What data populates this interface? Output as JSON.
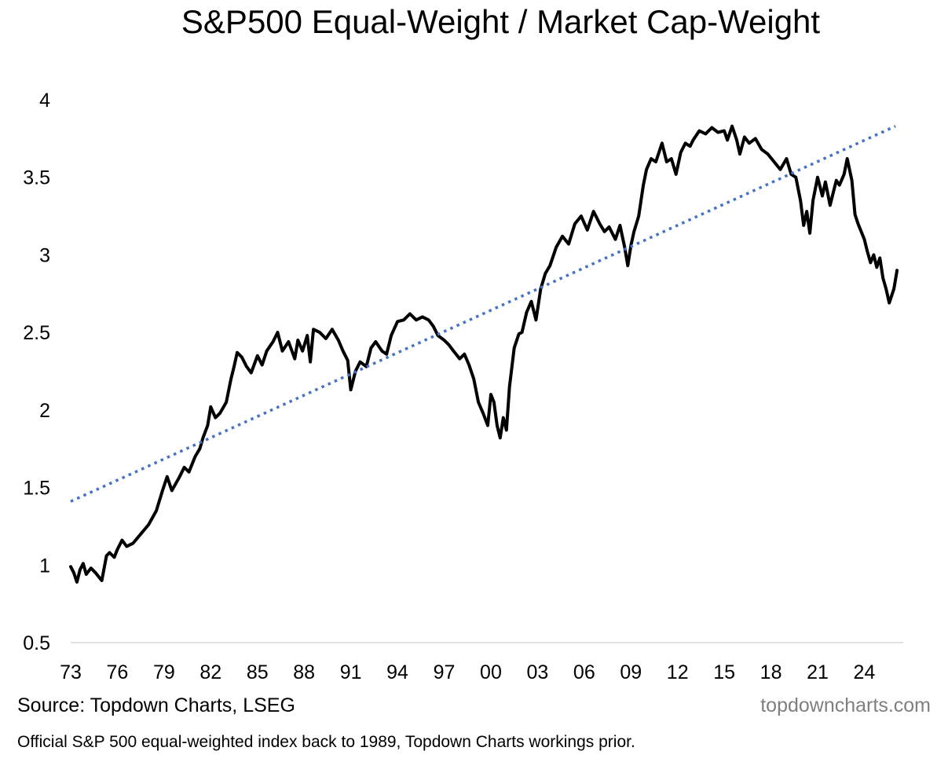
{
  "chart_data": {
    "type": "line",
    "title": "S&P500 Equal-Weight / Market Cap-Weight",
    "xlabel": "",
    "ylabel": "",
    "ylim": [
      0.5,
      4
    ],
    "xlim": [
      1973,
      2026.5
    ],
    "y_ticks": [
      0.5,
      1,
      1.5,
      2,
      2.5,
      3,
      3.5,
      4
    ],
    "y_tick_labels": [
      "0.5",
      "1",
      "1.5",
      "2",
      "2.5",
      "3",
      "3.5",
      "4"
    ],
    "x_ticks": [
      1973,
      1976,
      1979,
      1982,
      1985,
      1988,
      1991,
      1994,
      1997,
      2000,
      2003,
      2006,
      2009,
      2012,
      2015,
      2018,
      2021,
      2024
    ],
    "x_tick_labels": [
      "73",
      "76",
      "79",
      "82",
      "85",
      "88",
      "91",
      "94",
      "97",
      "00",
      "03",
      "06",
      "09",
      "12",
      "15",
      "18",
      "21",
      "24"
    ],
    "grid": false,
    "legend": "none",
    "series": [
      {
        "style": "solid",
        "color": "#000000",
        "x": [
          1973.0,
          1973.2,
          1973.4,
          1973.6,
          1973.8,
          1974.0,
          1974.3,
          1974.6,
          1975.0,
          1975.3,
          1975.5,
          1975.8,
          1976.0,
          1976.3,
          1976.6,
          1977.0,
          1977.5,
          1978.0,
          1978.5,
          1978.9,
          1979.2,
          1979.5,
          1980.0,
          1980.3,
          1980.6,
          1981.0,
          1981.3,
          1981.5,
          1981.8,
          1982.0,
          1982.3,
          1982.6,
          1983.0,
          1983.3,
          1983.5,
          1983.7,
          1984.0,
          1984.3,
          1984.6,
          1985.0,
          1985.3,
          1985.6,
          1986.0,
          1986.3,
          1986.6,
          1987.0,
          1987.4,
          1987.6,
          1987.9,
          1988.2,
          1988.4,
          1988.6,
          1989.0,
          1989.4,
          1989.8,
          1990.2,
          1990.5,
          1990.8,
          1991.0,
          1991.3,
          1991.6,
          1992.0,
          1992.3,
          1992.6,
          1993.0,
          1993.3,
          1993.6,
          1994.0,
          1994.4,
          1994.8,
          1995.2,
          1995.6,
          1996.0,
          1996.3,
          1996.6,
          1997.0,
          1997.3,
          1997.6,
          1998.0,
          1998.3,
          1998.6,
          1998.9,
          1999.2,
          1999.5,
          1999.8,
          2000.0,
          2000.2,
          2000.4,
          2000.6,
          2000.8,
          2001.0,
          2001.2,
          2001.5,
          2001.8,
          2002.0,
          2002.3,
          2002.6,
          2002.9,
          2003.2,
          2003.5,
          2003.8,
          2004.2,
          2004.6,
          2005.0,
          2005.4,
          2005.8,
          2006.2,
          2006.6,
          2007.0,
          2007.3,
          2007.6,
          2008.0,
          2008.3,
          2008.6,
          2008.8,
          2009.0,
          2009.2,
          2009.5,
          2009.8,
          2010.0,
          2010.3,
          2010.6,
          2011.0,
          2011.3,
          2011.6,
          2011.9,
          2012.2,
          2012.5,
          2012.8,
          2013.0,
          2013.4,
          2013.8,
          2014.2,
          2014.6,
          2015.0,
          2015.2,
          2015.5,
          2015.8,
          2016.0,
          2016.3,
          2016.6,
          2017.0,
          2017.4,
          2017.8,
          2018.2,
          2018.6,
          2019.0,
          2019.3,
          2019.6,
          2019.9,
          2020.1,
          2020.3,
          2020.5,
          2020.7,
          2021.0,
          2021.3,
          2021.5,
          2021.8,
          2022.0,
          2022.2,
          2022.4,
          2022.7,
          2022.9,
          2023.2,
          2023.4,
          2023.6,
          2023.8,
          2024.0,
          2024.2,
          2024.4,
          2024.6,
          2024.8,
          2025.0,
          2025.2,
          2025.4,
          2025.6,
          2025.9,
          2026.1
        ],
        "values": [
          0.99,
          0.95,
          0.89,
          0.97,
          1.01,
          0.94,
          0.98,
          0.95,
          0.9,
          1.06,
          1.08,
          1.05,
          1.1,
          1.16,
          1.12,
          1.14,
          1.2,
          1.26,
          1.35,
          1.48,
          1.57,
          1.48,
          1.57,
          1.63,
          1.6,
          1.7,
          1.75,
          1.82,
          1.9,
          2.02,
          1.95,
          1.98,
          2.05,
          2.2,
          2.28,
          2.37,
          2.34,
          2.28,
          2.24,
          2.35,
          2.29,
          2.38,
          2.44,
          2.5,
          2.38,
          2.44,
          2.33,
          2.45,
          2.38,
          2.48,
          2.31,
          2.52,
          2.5,
          2.46,
          2.52,
          2.45,
          2.38,
          2.32,
          2.13,
          2.25,
          2.31,
          2.28,
          2.4,
          2.44,
          2.38,
          2.36,
          2.48,
          2.57,
          2.58,
          2.62,
          2.58,
          2.6,
          2.58,
          2.54,
          2.48,
          2.45,
          2.42,
          2.38,
          2.33,
          2.36,
          2.29,
          2.2,
          2.05,
          1.98,
          1.9,
          2.1,
          2.05,
          1.9,
          1.82,
          1.95,
          1.87,
          2.15,
          2.4,
          2.49,
          2.5,
          2.63,
          2.7,
          2.58,
          2.78,
          2.88,
          2.93,
          3.05,
          3.12,
          3.07,
          3.2,
          3.25,
          3.16,
          3.28,
          3.2,
          3.15,
          3.18,
          3.1,
          3.19,
          3.05,
          2.93,
          3.06,
          3.15,
          3.25,
          3.45,
          3.55,
          3.62,
          3.6,
          3.72,
          3.6,
          3.62,
          3.52,
          3.66,
          3.72,
          3.7,
          3.74,
          3.8,
          3.78,
          3.82,
          3.79,
          3.8,
          3.74,
          3.83,
          3.74,
          3.65,
          3.76,
          3.72,
          3.75,
          3.68,
          3.65,
          3.6,
          3.55,
          3.62,
          3.52,
          3.5,
          3.35,
          3.19,
          3.28,
          3.14,
          3.35,
          3.5,
          3.38,
          3.47,
          3.32,
          3.4,
          3.48,
          3.45,
          3.52,
          3.62,
          3.48,
          3.26,
          3.2,
          3.15,
          3.1,
          3.02,
          2.95,
          3.0,
          2.92,
          2.98,
          2.85,
          2.78,
          2.69,
          2.78,
          2.9
        ]
      },
      {
        "style": "dotted",
        "color": "#4472c4",
        "x": [
          1973.0,
          2026.0
        ],
        "values": [
          1.41,
          3.83
        ]
      }
    ]
  },
  "footer": {
    "source": "Source: Topdown Charts, LSEG",
    "website": "topdowncharts.com",
    "note": "Official S&P 500 equal-weighted index back to 1989, Topdown Charts workings prior."
  }
}
